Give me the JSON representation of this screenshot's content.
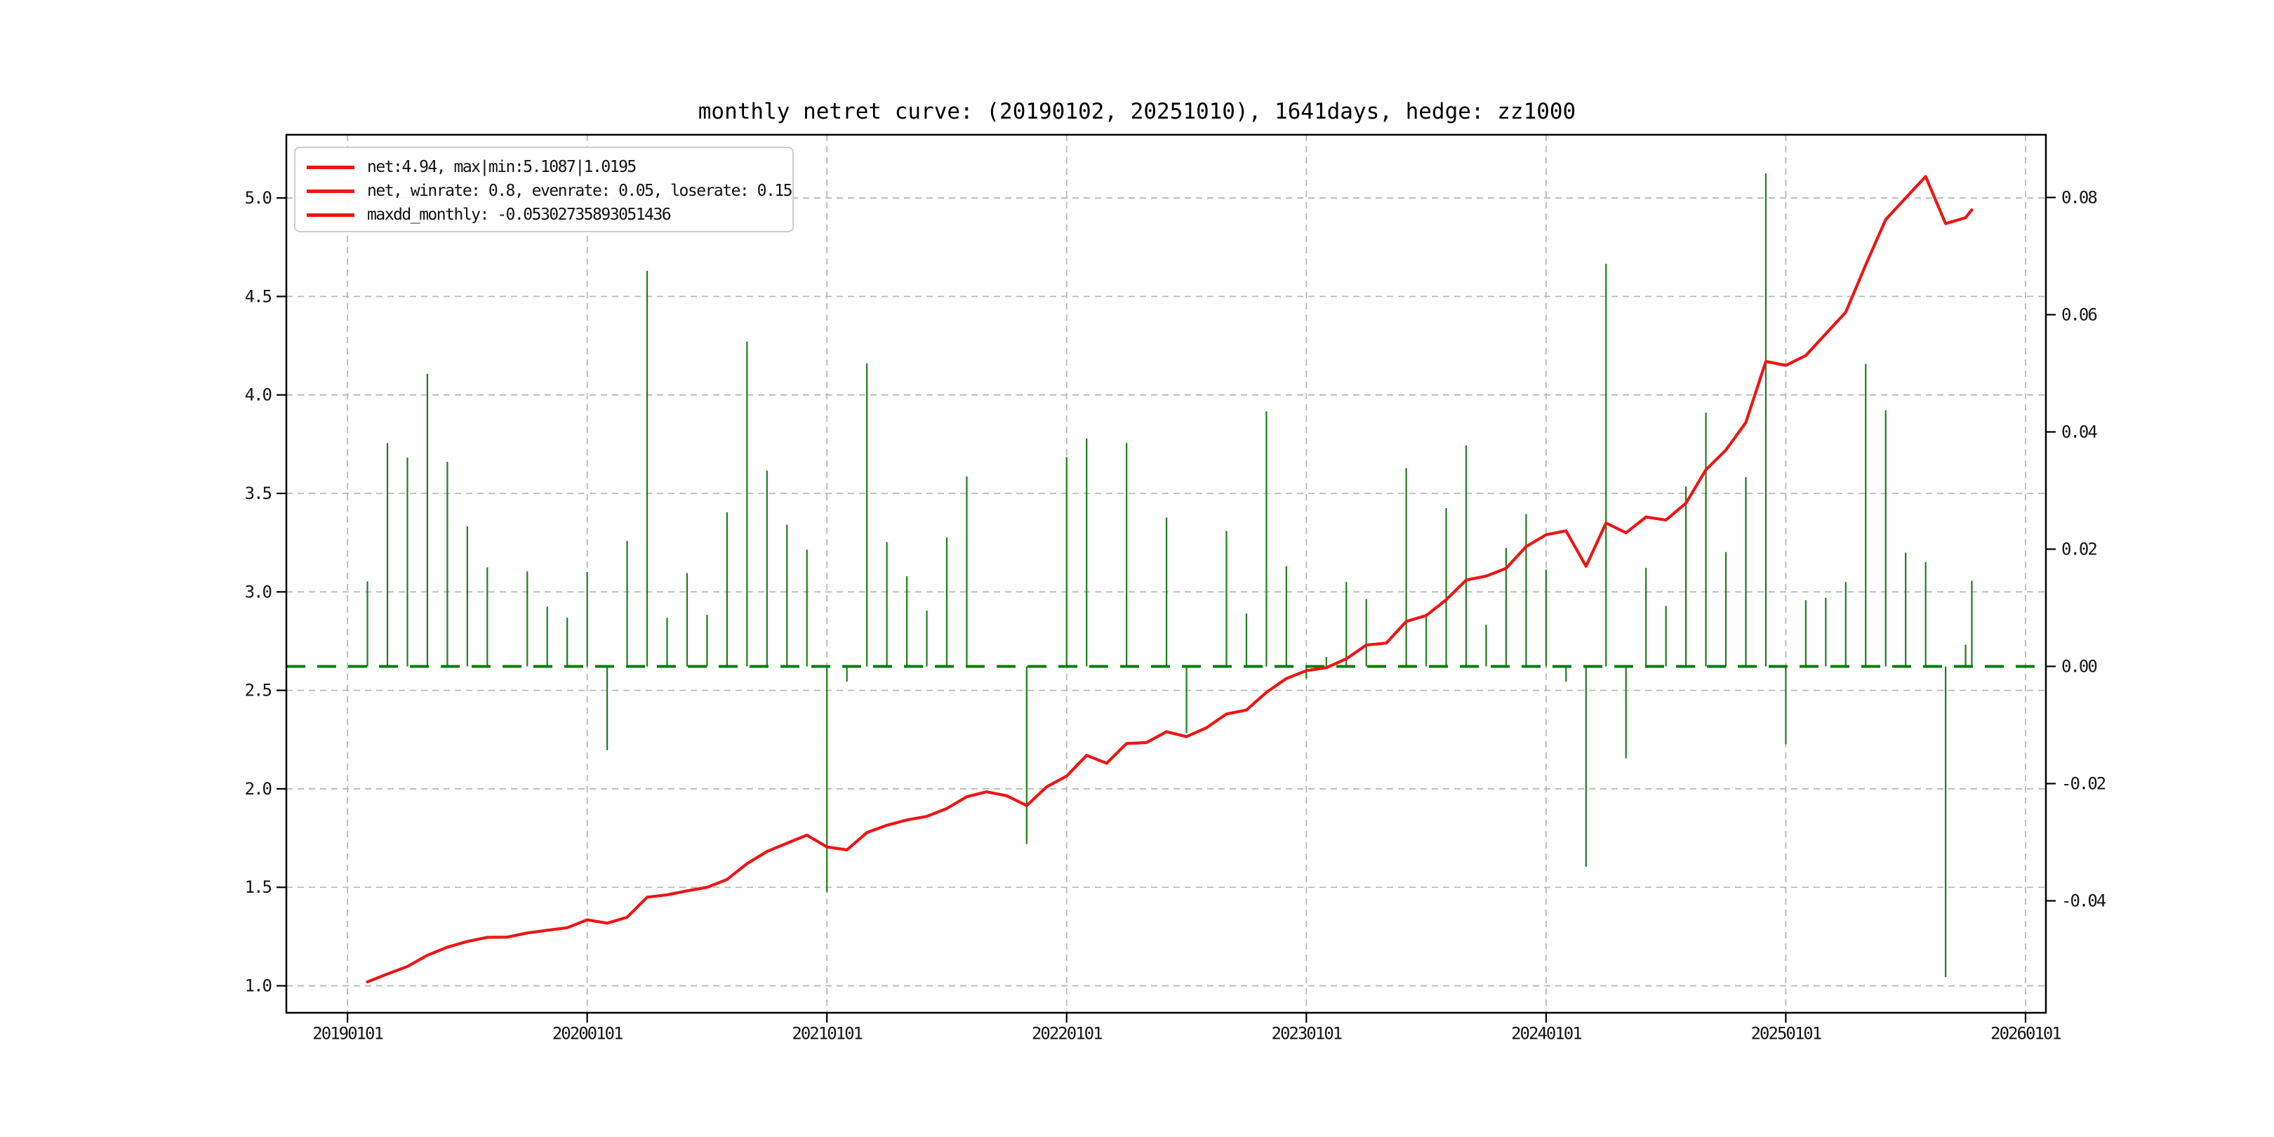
{
  "header": {
    "title": "monthly netret curve: (20190102, 20251010), 1641days, hedge: zz1000"
  },
  "legend": {
    "position": "upper-left",
    "items": [
      {
        "label": "net:4.94, max|min:5.1087|1.0195",
        "color": "#ed1515"
      },
      {
        "label": "net, winrate: 0.8, evenrate: 0.05, loserate: 0.15",
        "color": "#ed1515"
      },
      {
        "label": "maxdd_monthly: -0.05302735893051436",
        "color": "#ed1515"
      }
    ]
  },
  "chart_data": {
    "type": "line+bar",
    "title": "monthly netret curve: (20190102, 20251010), 1641days, hedge: zz1000",
    "grid": true,
    "x_domain": [
      2018.745,
      2026.085
    ],
    "x_tick_years": [
      2019,
      2020,
      2021,
      2022,
      2023,
      2024,
      2025,
      2026
    ],
    "x_tick_labels": [
      "20190101",
      "20200101",
      "20210101",
      "20220101",
      "20230101",
      "20240101",
      "20250101",
      "20260101"
    ],
    "left_axis": {
      "series": "net (cumulative, red line)",
      "lim": [
        0.863,
        5.321
      ],
      "ticks": [
        5.0,
        4.5,
        4.0,
        3.5,
        3.0,
        2.5,
        2.0,
        1.5,
        1.0
      ],
      "tick_labels": [
        "5.0",
        "4.5",
        "4.0",
        "3.5",
        "3.0",
        "2.5",
        "2.0",
        "1.5",
        "1.0"
      ]
    },
    "right_axis": {
      "series": "monthly return (green bars)",
      "lim": [
        -0.0591,
        0.0907
      ],
      "ticks": [
        0.08,
        0.06,
        0.04,
        0.02,
        0.0,
        -0.02,
        -0.04
      ],
      "tick_labels": [
        "0.08",
        "0.06",
        "0.04",
        "0.02",
        "0.00",
        "-0.02",
        "-0.04"
      ]
    },
    "baseline_value": 0.0,
    "months": [
      "201901",
      "201902",
      "201903",
      "201904",
      "201905",
      "201906",
      "201907",
      "201908",
      "201909",
      "201910",
      "201911",
      "201912",
      "202001",
      "202002",
      "202003",
      "202004",
      "202005",
      "202006",
      "202007",
      "202008",
      "202009",
      "202010",
      "202011",
      "202012",
      "202101",
      "202102",
      "202103",
      "202104",
      "202105",
      "202106",
      "202107",
      "202108",
      "202109",
      "202110",
      "202111",
      "202112",
      "202201",
      "202202",
      "202203",
      "202204",
      "202205",
      "202206",
      "202207",
      "202208",
      "202209",
      "202210",
      "202211",
      "202212",
      "202301",
      "202302",
      "202303",
      "202304",
      "202305",
      "202306",
      "202307",
      "202308",
      "202309",
      "202310",
      "202311",
      "202312",
      "202401",
      "202402",
      "202403",
      "202404",
      "202405",
      "202406",
      "202407",
      "202408",
      "202409",
      "202410",
      "202411",
      "202412",
      "202501",
      "202502",
      "202503",
      "202504",
      "202505",
      "202506",
      "202507",
      "202508",
      "202509",
      "202510"
    ],
    "monthly_returns": [
      0.0145,
      0.0381,
      0.0356,
      0.0499,
      0.0349,
      0.0239,
      0.0169,
      0.0,
      0.0162,
      0.0102,
      0.0083,
      0.0161,
      -0.0143,
      0.0214,
      0.0675,
      0.0083,
      0.0159,
      0.0088,
      0.0263,
      0.0554,
      0.0334,
      0.0242,
      0.0199,
      -0.0385,
      -0.0026,
      0.0517,
      0.0212,
      0.0154,
      0.0095,
      0.022,
      0.0324,
      0.0,
      0.0,
      -0.0303,
      0.0,
      0.0357,
      0.0389,
      0.0,
      0.0381,
      0.0,
      0.0254,
      -0.0114,
      0.0,
      0.0231,
      0.009,
      0.0435,
      0.0171,
      -0.0021,
      0.0016,
      0.0144,
      0.0115,
      0.0,
      0.0338,
      0.009,
      0.027,
      0.0377,
      0.0071,
      0.0202,
      0.026,
      0.0165,
      -0.0026,
      -0.0342,
      0.0687,
      -0.0157,
      0.0168,
      0.0103,
      0.0307,
      0.0433,
      0.0195,
      0.0323,
      0.0841,
      -0.0133,
      0.0113,
      0.0117,
      0.0144,
      0.0516,
      0.0437,
      0.0194,
      0.0178,
      -0.053,
      0.0037,
      0.0146
    ],
    "net": [
      1.02,
      1.06,
      1.098,
      1.155,
      1.196,
      1.225,
      1.246,
      1.247,
      1.268,
      1.282,
      1.295,
      1.335,
      1.318,
      1.348,
      1.45,
      1.462,
      1.482,
      1.5,
      1.54,
      1.62,
      1.682,
      1.724,
      1.765,
      1.705,
      1.69,
      1.778,
      1.815,
      1.842,
      1.86,
      1.9,
      1.96,
      1.985,
      1.965,
      1.915,
      2.01,
      2.065,
      2.17,
      2.13,
      2.23,
      2.235,
      2.29,
      2.265,
      2.31,
      2.38,
      2.4,
      2.49,
      2.56,
      2.6,
      2.615,
      2.66,
      2.73,
      2.74,
      2.85,
      2.88,
      2.96,
      3.06,
      3.08,
      3.12,
      3.23,
      3.29,
      3.31,
      3.13,
      3.35,
      3.3,
      3.38,
      3.365,
      3.45,
      3.62,
      3.72,
      3.86,
      4.17,
      4.15,
      4.2,
      4.31,
      4.42,
      4.66,
      4.89,
      5.0,
      5.109,
      4.87,
      4.9,
      4.94
    ],
    "last_point_yearfrac": 2025.776,
    "stats": {
      "net_final": 4.94,
      "net_max": 5.1087,
      "net_min": 1.0195,
      "winrate": 0.8,
      "evenrate": 0.05,
      "loserate": 0.15,
      "maxdd_monthly": -0.05302735893051436
    },
    "colors": {
      "net_line": "#ed1515",
      "return_bars": "#1e7d1e",
      "zero_line": "#067d06",
      "grid": "#b9b9b9",
      "spine": "#000000",
      "background": "#ffffff"
    }
  }
}
